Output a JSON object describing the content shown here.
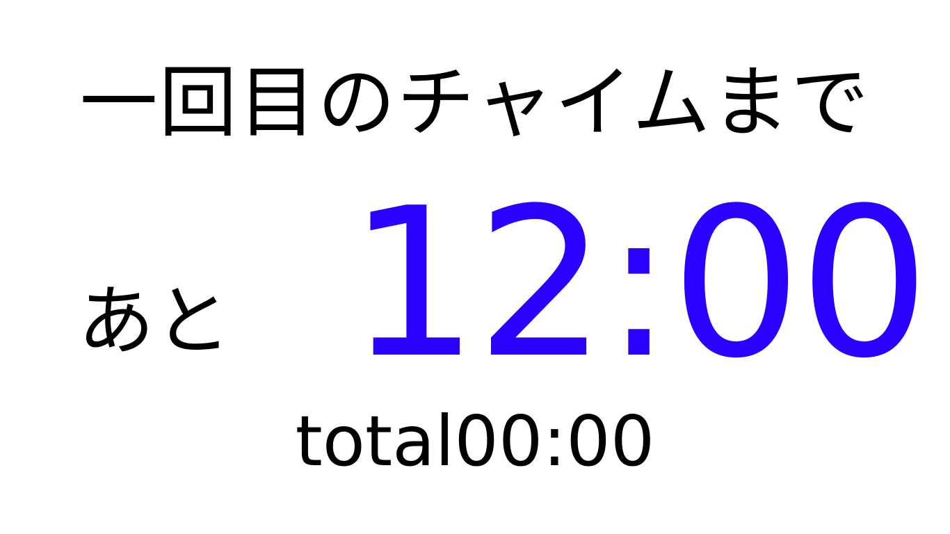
{
  "heading": "一回目のチャイムまで",
  "remaining": {
    "prefix": "あと",
    "time": "12:00"
  },
  "total": "total00:00",
  "colors": {
    "background": "#ffffff",
    "text": "#000000",
    "countdown": "#2a00ff"
  }
}
